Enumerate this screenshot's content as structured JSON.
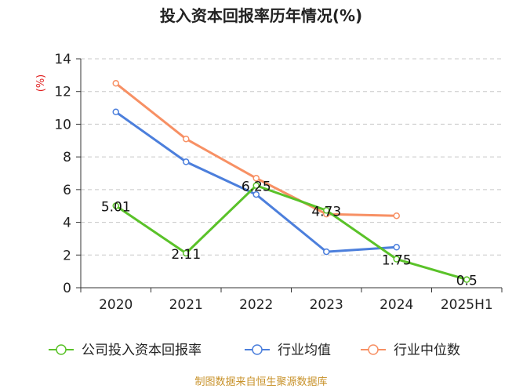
{
  "chart_data": {
    "type": "line",
    "title": "投入资本回报率历年情况(%)",
    "ylabel": "(%)",
    "categories": [
      "2020",
      "2021",
      "2022",
      "2023",
      "2024",
      "2025H1"
    ],
    "ylim": [
      0,
      14
    ],
    "yticks": [
      0,
      2,
      4,
      6,
      8,
      10,
      12,
      14
    ],
    "grid": "horizontal-dashed",
    "legend_position": "bottom",
    "series": [
      {
        "name": "公司投入资本回报率",
        "color": "#5ac229",
        "values": [
          5.01,
          2.11,
          6.25,
          4.73,
          1.75,
          0.5
        ],
        "labels": [
          "5.01",
          "2.11",
          "6.25",
          "4.73",
          "1.75",
          "0.5"
        ]
      },
      {
        "name": "行业均值",
        "color": "#4c7fdc",
        "values": [
          10.75,
          7.7,
          5.7,
          2.2,
          2.48,
          null
        ]
      },
      {
        "name": "行业中位数",
        "color": "#f79064",
        "values": [
          12.5,
          9.1,
          6.7,
          4.5,
          4.4,
          null
        ]
      }
    ],
    "source": "制图数据来自恒生聚源数据库"
  }
}
